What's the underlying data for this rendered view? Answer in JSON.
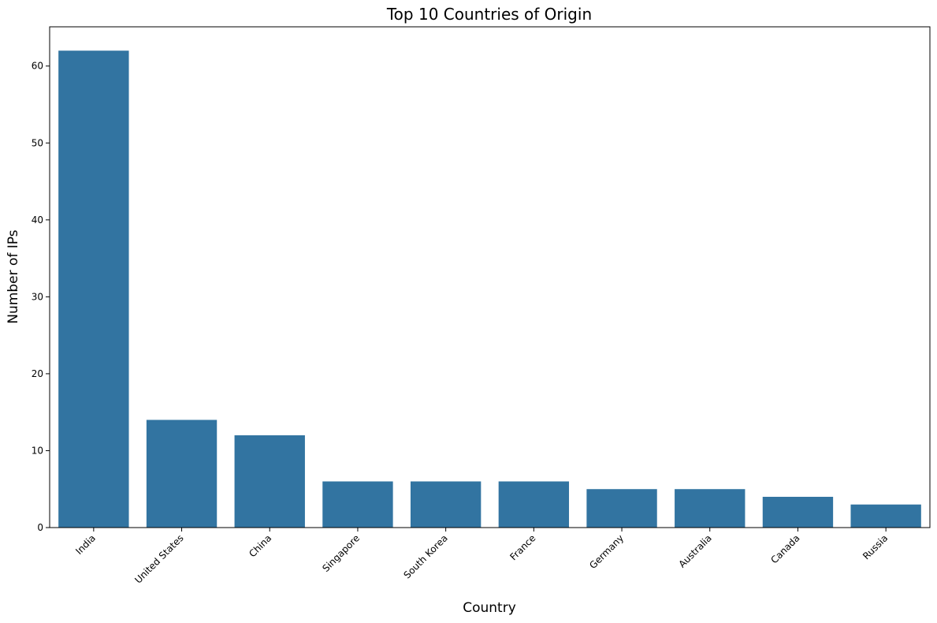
{
  "chart_data": {
    "type": "bar",
    "title": "Top 10 Countries of Origin",
    "xlabel": "Country",
    "ylabel": "Number of IPs",
    "categories": [
      "India",
      "United States",
      "China",
      "Singapore",
      "South Korea",
      "France",
      "Germany",
      "Australia",
      "Canada",
      "Russia"
    ],
    "values": [
      62,
      14,
      12,
      6,
      6,
      6,
      5,
      5,
      4,
      3
    ],
    "ylim": [
      0,
      65.1
    ],
    "yticks": [
      0,
      10,
      20,
      30,
      40,
      50,
      60
    ],
    "grid": false,
    "legend": "none",
    "bar_color": "#3274a1"
  }
}
